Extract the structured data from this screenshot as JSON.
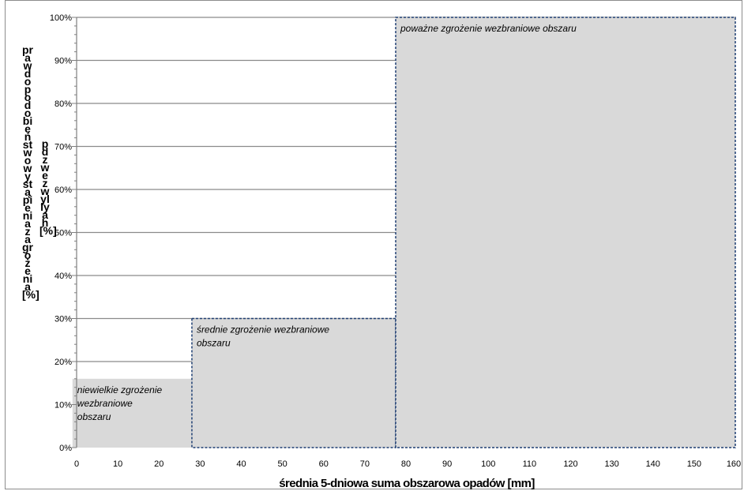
{
  "chart_data": {
    "type": "area",
    "xlabel": "średnia 5-dniowa suma obszarowa opadów [mm]",
    "ylabel": "prawdopodobieństwo wystąpienia zagrożenia [%]",
    "ylabel_secondary": "pdzwezwyllyah [%]",
    "xlim": [
      0,
      160
    ],
    "ylim": [
      0,
      100
    ],
    "x_ticks": [
      0,
      10,
      20,
      30,
      40,
      50,
      60,
      70,
      80,
      90,
      100,
      110,
      120,
      130,
      140,
      150,
      160
    ],
    "y_ticks": [
      "0%",
      "10%",
      "20%",
      "30%",
      "40%",
      "50%",
      "60%",
      "70%",
      "80%",
      "90%",
      "100%"
    ],
    "y_tick_values": [
      0,
      10,
      20,
      30,
      40,
      50,
      60,
      70,
      80,
      90,
      100
    ],
    "grid": true,
    "zones": [
      {
        "label": "niewielkie zgrożenie wezbraniowe obszaru",
        "x_start": -1,
        "x_end": 28,
        "y_top": 16,
        "lines": [
          "niewielkie zgrożenie",
          "wezbraniowe",
          "obszaru"
        ]
      },
      {
        "label": "średnie zgrożenie wezbraniowe obszaru",
        "x_start": 28,
        "x_end": 77.5,
        "y_top": 30,
        "lines": [
          "średnie zgrożenie wezbraniowe",
          "obszaru"
        ]
      },
      {
        "label": "poważne zgrożenie wezbraniowe obszaru",
        "x_start": 77.5,
        "x_end": 160,
        "y_top": 100,
        "lines": [
          "poważne zgrożenie wezbraniowe obszaru"
        ]
      }
    ],
    "colors": {
      "zone_fill": "#d9d9d9",
      "zone_border": "#1f3f73",
      "grid": "#8a8a8a"
    }
  }
}
